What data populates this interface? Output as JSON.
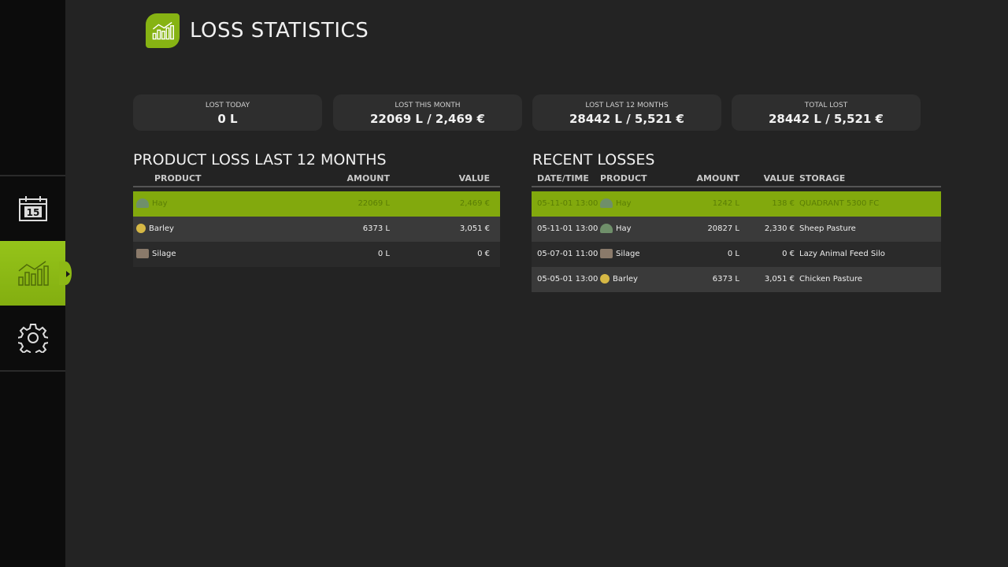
{
  "title": "LOSS STATISTICS",
  "sidebar": {
    "items": [
      {
        "icon": "calendar-icon",
        "label": "15"
      },
      {
        "icon": "statistics-icon",
        "active": true
      },
      {
        "icon": "gear-icon"
      }
    ]
  },
  "stats": [
    {
      "label": "LOST TODAY",
      "value": "0 L"
    },
    {
      "label": "LOST THIS MONTH",
      "value": "22069 L / 2,469 €"
    },
    {
      "label": "LOST LAST 12 MONTHS",
      "value": "28442 L / 5,521 €"
    },
    {
      "label": "TOTAL LOST",
      "value": "28442 L / 5,521 €"
    }
  ],
  "product_loss": {
    "title": "PRODUCT LOSS LAST 12 MONTHS",
    "columns": [
      "PRODUCT",
      "AMOUNT",
      "VALUE"
    ],
    "rows": [
      {
        "product": "Hay",
        "icon": "hay",
        "amount": "22069 L",
        "value": "2,469 €",
        "selected": true
      },
      {
        "product": "Barley",
        "icon": "barley",
        "amount": "6373 L",
        "value": "3,051 €"
      },
      {
        "product": "Silage",
        "icon": "silage",
        "amount": "0 L",
        "value": "0 €"
      }
    ]
  },
  "recent": {
    "title": "RECENT LOSSES",
    "columns": [
      "DATE/TIME",
      "PRODUCT",
      "AMOUNT",
      "VALUE",
      "STORAGE"
    ],
    "rows": [
      {
        "date": "05-11-01 13:00",
        "product": "Hay",
        "icon": "hay",
        "amount": "1242 L",
        "value": "138 €",
        "storage": "QUADRANT 5300 FC",
        "selected": true
      },
      {
        "date": "05-11-01 13:00",
        "product": "Hay",
        "icon": "hay",
        "amount": "20827 L",
        "value": "2,330 €",
        "storage": "Sheep Pasture"
      },
      {
        "date": "05-07-01 11:00",
        "product": "Silage",
        "icon": "silage",
        "amount": "0 L",
        "value": "0 €",
        "storage": "Lazy Animal Feed Silo"
      },
      {
        "date": "05-05-01 13:00",
        "product": "Barley",
        "icon": "barley",
        "amount": "6373 L",
        "value": "3,051 €",
        "storage": "Chicken Pasture"
      }
    ]
  },
  "colors": {
    "accent": "#86b313",
    "background": "#232323",
    "sidebar": "#0c0c0c"
  }
}
